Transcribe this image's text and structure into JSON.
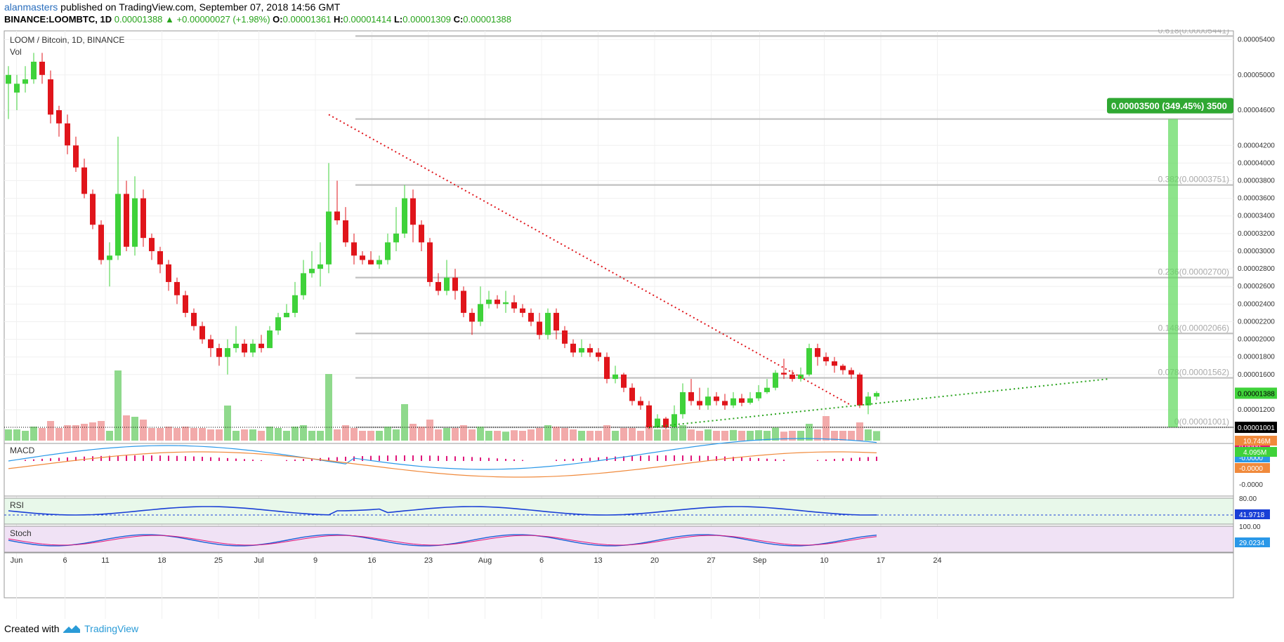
{
  "header": {
    "user": "alanmasters",
    "published": "published on TradingView.com, September 07, 2018 14:56 GMT"
  },
  "ohlc": {
    "symbol": "BINANCE:LOOMBTC, 1D",
    "last": "0.00001388",
    "change_icon": "triangle-up-icon",
    "change": "+0.00000027 (+1.98%)",
    "o_label": "O:",
    "o": "0.00001361",
    "h_label": "H:",
    "h": "0.00001414",
    "l_label": "L:",
    "l": "0.00001309",
    "c_label": "C:",
    "c": "0.00001388"
  },
  "legend": {
    "title": "LOOM / Bitcoin, 1D, BINANCE",
    "vol": "Vol"
  },
  "footer": {
    "created": "Created with",
    "brand": "TradingView",
    "logo_icon": "tradingview-logo-icon"
  },
  "colors": {
    "up": "#3fd23a",
    "down": "#e0151b",
    "vol_up": "#8fd98c",
    "vol_down": "#f2aaaa",
    "fib": "#c0c0c0",
    "trend_down": "#e0151b",
    "trend_up": "#27a31b",
    "macd": "#2a98e8",
    "signal": "#f08a3c",
    "hist": "#e0157a",
    "projection": "#5dd85a"
  },
  "chart_data": [
    {
      "type": "candlestick",
      "title": "LOOM / Bitcoin, 1D, BINANCE",
      "x_ticks": [
        "Jun",
        "6",
        "11",
        "18",
        "25",
        "Jul",
        "9",
        "16",
        "23",
        "Aug",
        "6",
        "13",
        "20",
        "27",
        "Sep",
        "10",
        "17",
        "24"
      ],
      "y_ticks": [
        "0.00005400",
        "0.00005000",
        "0.00004600",
        "0.00004200",
        "0.00004000",
        "0.00003800",
        "0.00003600",
        "0.00003400",
        "0.00003200",
        "0.00003000",
        "0.00002800",
        "0.00002600",
        "0.00002400",
        "0.00002200",
        "0.00002000",
        "0.00001800",
        "0.00001600",
        "0.00001200"
      ],
      "candles": [
        [
          4.9,
          5.0,
          5.1,
          4.5
        ],
        [
          4.8,
          4.9,
          5.0,
          4.6
        ],
        [
          4.9,
          4.95,
          5.1,
          4.8
        ],
        [
          4.95,
          5.15,
          5.25,
          4.9
        ],
        [
          5.15,
          5.0,
          5.25,
          4.9
        ],
        [
          4.95,
          4.55,
          5.05,
          4.45
        ],
        [
          4.6,
          4.45,
          4.65,
          4.3
        ],
        [
          4.45,
          4.2,
          4.55,
          4.1
        ],
        [
          4.2,
          3.95,
          4.3,
          3.9
        ],
        [
          3.95,
          3.65,
          4.05,
          3.6
        ],
        [
          3.65,
          3.3,
          3.7,
          3.25
        ],
        [
          3.3,
          2.9,
          3.35,
          2.85
        ],
        [
          2.9,
          2.95,
          3.1,
          2.6
        ],
        [
          2.95,
          3.65,
          4.3,
          2.9
        ],
        [
          3.65,
          3.05,
          3.8,
          3.0
        ],
        [
          3.05,
          3.6,
          3.85,
          2.95
        ],
        [
          3.6,
          3.15,
          3.7,
          3.05
        ],
        [
          3.15,
          3.0,
          3.2,
          2.9
        ],
        [
          3.0,
          2.85,
          3.05,
          2.75
        ],
        [
          2.85,
          2.65,
          2.9,
          2.55
        ],
        [
          2.65,
          2.5,
          2.7,
          2.4
        ],
        [
          2.5,
          2.3,
          2.55,
          2.25
        ],
        [
          2.3,
          2.15,
          2.35,
          2.1
        ],
        [
          2.15,
          2.0,
          2.2,
          1.95
        ],
        [
          2.0,
          1.9,
          2.05,
          1.8
        ],
        [
          1.9,
          1.8,
          1.95,
          1.7
        ],
        [
          1.8,
          1.9,
          2.0,
          1.6
        ],
        [
          1.9,
          1.95,
          2.15,
          1.85
        ],
        [
          1.95,
          1.85,
          2.0,
          1.8
        ],
        [
          1.85,
          1.95,
          2.0,
          1.8
        ],
        [
          1.95,
          1.9,
          2.05,
          1.85
        ],
        [
          1.9,
          2.1,
          2.15,
          1.95
        ],
        [
          2.1,
          2.25,
          2.3,
          2.05
        ],
        [
          2.25,
          2.3,
          2.4,
          2.25
        ],
        [
          2.3,
          2.5,
          2.65,
          2.25
        ],
        [
          2.5,
          2.75,
          2.9,
          2.45
        ],
        [
          2.75,
          2.8,
          3.0,
          2.7
        ],
        [
          2.8,
          2.85,
          3.1,
          2.6
        ],
        [
          2.85,
          3.45,
          4.0,
          2.75
        ],
        [
          3.45,
          3.35,
          3.8,
          3.3
        ],
        [
          3.35,
          3.1,
          3.5,
          3.05
        ],
        [
          3.1,
          2.95,
          3.2,
          2.85
        ],
        [
          2.95,
          2.9,
          3.0,
          2.85
        ],
        [
          2.9,
          2.85,
          3.0,
          2.85
        ],
        [
          2.85,
          2.9,
          2.95,
          2.8
        ],
        [
          2.9,
          3.1,
          3.2,
          2.85
        ],
        [
          3.1,
          3.2,
          3.5,
          3.0
        ],
        [
          3.2,
          3.6,
          3.75,
          3.15
        ],
        [
          3.6,
          3.3,
          3.7,
          3.1
        ],
        [
          3.3,
          3.1,
          3.35,
          3.0
        ],
        [
          3.1,
          2.65,
          3.15,
          2.6
        ],
        [
          2.65,
          2.55,
          2.75,
          2.5
        ],
        [
          2.55,
          2.7,
          2.9,
          2.5
        ],
        [
          2.7,
          2.55,
          2.8,
          2.45
        ],
        [
          2.55,
          2.3,
          2.6,
          2.25
        ],
        [
          2.3,
          2.2,
          2.35,
          2.05
        ],
        [
          2.2,
          2.4,
          2.6,
          2.15
        ],
        [
          2.4,
          2.45,
          2.55,
          2.35
        ],
        [
          2.45,
          2.4,
          2.5,
          2.35
        ],
        [
          2.4,
          2.42,
          2.55,
          2.3
        ],
        [
          2.42,
          2.35,
          2.5,
          2.3
        ],
        [
          2.35,
          2.3,
          2.4,
          2.25
        ],
        [
          2.3,
          2.2,
          2.35,
          2.15
        ],
        [
          2.2,
          2.05,
          2.3,
          2.0
        ],
        [
          2.05,
          2.3,
          2.35,
          2.0
        ],
        [
          2.3,
          2.1,
          2.35,
          2.0
        ],
        [
          2.1,
          1.95,
          2.15,
          1.9
        ],
        [
          1.95,
          1.85,
          2.0,
          1.8
        ],
        [
          1.85,
          1.9,
          2.0,
          1.8
        ],
        [
          1.9,
          1.85,
          1.95,
          1.8
        ],
        [
          1.85,
          1.8,
          1.9,
          1.75
        ],
        [
          1.8,
          1.55,
          1.85,
          1.5
        ],
        [
          1.55,
          1.6,
          1.7,
          1.5
        ],
        [
          1.6,
          1.45,
          1.62,
          1.4
        ],
        [
          1.45,
          1.3,
          1.5,
          1.25
        ],
        [
          1.3,
          1.25,
          1.35,
          1.2
        ],
        [
          1.25,
          1.0,
          1.3,
          0.98
        ],
        [
          1.0,
          1.1,
          1.15,
          0.99
        ],
        [
          1.1,
          1.0,
          1.12,
          0.98
        ],
        [
          1.0,
          1.15,
          1.25,
          0.99
        ],
        [
          1.15,
          1.4,
          1.5,
          1.1
        ],
        [
          1.4,
          1.3,
          1.55,
          1.25
        ],
        [
          1.3,
          1.25,
          1.45,
          1.2
        ],
        [
          1.25,
          1.35,
          1.45,
          1.2
        ],
        [
          1.35,
          1.3,
          1.4,
          1.25
        ],
        [
          1.3,
          1.25,
          1.38,
          1.2
        ],
        [
          1.25,
          1.33,
          1.4,
          1.22
        ],
        [
          1.33,
          1.28,
          1.38,
          1.24
        ],
        [
          1.28,
          1.33,
          1.4,
          1.26
        ],
        [
          1.33,
          1.4,
          1.48,
          1.3
        ],
        [
          1.4,
          1.45,
          1.55,
          1.38
        ],
        [
          1.45,
          1.62,
          1.65,
          1.42
        ],
        [
          1.62,
          1.6,
          1.78,
          1.55
        ],
        [
          1.6,
          1.55,
          1.65,
          1.52
        ],
        [
          1.55,
          1.6,
          1.68,
          1.52
        ],
        [
          1.6,
          1.9,
          1.95,
          1.58
        ],
        [
          1.9,
          1.8,
          1.95,
          1.7
        ],
        [
          1.8,
          1.75,
          1.85,
          1.7
        ],
        [
          1.75,
          1.7,
          1.8,
          1.62
        ],
        [
          1.7,
          1.65,
          1.72,
          1.6
        ],
        [
          1.65,
          1.6,
          1.68,
          1.55
        ],
        [
          1.6,
          1.25,
          1.62,
          1.22
        ],
        [
          1.25,
          1.35,
          1.4,
          1.15
        ],
        [
          1.35,
          1.39,
          1.41,
          1.31
        ]
      ],
      "candle_unit": "x 0.00001 BTC",
      "volume_labels": [
        "10.746M",
        "4.095M"
      ],
      "last_price_label": "0.00001388",
      "level_label": "0.00001001",
      "fib_levels": [
        {
          "label": "0.618(0.00005441)",
          "value": 5.441
        },
        {
          "label": "",
          "value": 4.5
        },
        {
          "label": "0.382(0.00003751)",
          "value": 3.751
        },
        {
          "label": "0.236(0.00002700)",
          "value": 2.7
        },
        {
          "label": "0.148(0.00002066)",
          "value": 2.066
        },
        {
          "label": "0.078(0.00001562)",
          "value": 1.562
        },
        {
          "label": "0(0.00001001)",
          "value": 1.001
        }
      ],
      "projection_label": "0.00003500 (349.45%) 3500",
      "projection_range": [
        1.001,
        4.5
      ]
    },
    {
      "type": "line",
      "name": "MACD",
      "labels": [
        "0.0000",
        "-0.0000",
        "-0.0000"
      ],
      "y_ticks": [
        "-0.0000"
      ]
    },
    {
      "type": "line",
      "name": "RSI",
      "y_ticks": [
        "80.00"
      ],
      "value_label": "41.9718"
    },
    {
      "type": "line",
      "name": "Stoch",
      "y_ticks": [
        "100.00"
      ],
      "value_label": "29.0234"
    }
  ]
}
